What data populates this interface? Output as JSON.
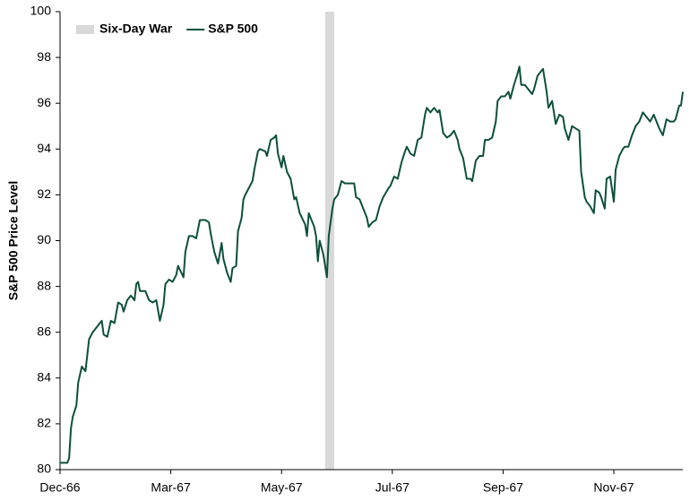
{
  "chart_data": {
    "type": "line",
    "y_label": "S&P 500 Price Level",
    "x": [
      0,
      4,
      5,
      6,
      7,
      9,
      10,
      12,
      14,
      16,
      18,
      21,
      23,
      24,
      26,
      28,
      30,
      32,
      34,
      35,
      37,
      39,
      41,
      42,
      43,
      44,
      47,
      49,
      51,
      53,
      55,
      57,
      58,
      60,
      62,
      64,
      65,
      68,
      69,
      71,
      73,
      75,
      77,
      80,
      82,
      83,
      85,
      87,
      89,
      90,
      92,
      94,
      95,
      97,
      98,
      100,
      101,
      102,
      104,
      106,
      107,
      109,
      110,
      113,
      114,
      116,
      118,
      119,
      120,
      122,
      123,
      125,
      127,
      129,
      130,
      132,
      135,
      136,
      137,
      139,
      140,
      141,
      142,
      143,
      145,
      147,
      148,
      150,
      151,
      153,
      155,
      157,
      159,
      162,
      163,
      165,
      167,
      169,
      170,
      172,
      174,
      176,
      178,
      181,
      182,
      184,
      186,
      188,
      190,
      191,
      193,
      195,
      197,
      199,
      201,
      202,
      204,
      206,
      208,
      209,
      211,
      213,
      215,
      217,
      219,
      220,
      222,
      224,
      226,
      227,
      229,
      231,
      233,
      234,
      236,
      238,
      240,
      241,
      243,
      245,
      247,
      248,
      250,
      252,
      253,
      254,
      256,
      258,
      260,
      261,
      263,
      265,
      266,
      268,
      269,
      271,
      273,
      275,
      277,
      278,
      280,
      282,
      284,
      286,
      287,
      289,
      290,
      292,
      294,
      295,
      297,
      298,
      300,
      301,
      303,
      305,
      306,
      308,
      310,
      311,
      313,
      315,
      317,
      319,
      321,
      323,
      325,
      327,
      330,
      332,
      334,
      336,
      338,
      339,
      341,
      342,
      343
    ],
    "series": [
      {
        "name": "S&P 500",
        "color": "#0d4f3c",
        "values": [
          80.3,
          80.3,
          80.5,
          81.8,
          82.3,
          82.8,
          83.8,
          84.5,
          84.3,
          85.7,
          86.0,
          86.3,
          86.5,
          85.9,
          85.8,
          86.5,
          86.4,
          87.3,
          87.2,
          86.9,
          87.4,
          87.6,
          87.4,
          88.1,
          88.2,
          87.8,
          87.8,
          87.4,
          87.3,
          87.4,
          86.5,
          87.2,
          88.1,
          88.3,
          88.2,
          88.5,
          88.9,
          88.4,
          89.5,
          90.2,
          90.2,
          90.1,
          90.9,
          90.9,
          90.8,
          90.3,
          89.5,
          89.0,
          89.9,
          89.2,
          88.6,
          88.2,
          88.8,
          88.9,
          90.4,
          91.0,
          91.8,
          92.0,
          92.3,
          92.6,
          93.1,
          93.9,
          94.0,
          93.9,
          93.7,
          94.4,
          94.5,
          94.6,
          93.8,
          93.2,
          93.7,
          93.0,
          92.7,
          91.8,
          91.9,
          91.2,
          90.7,
          90.2,
          91.2,
          90.8,
          90.6,
          90.2,
          89.1,
          90.0,
          89.4,
          88.4,
          90.2,
          91.4,
          91.8,
          92.0,
          92.6,
          92.5,
          92.5,
          92.5,
          91.9,
          91.8,
          91.4,
          91.0,
          90.6,
          90.8,
          90.9,
          91.5,
          91.9,
          92.3,
          92.4,
          92.8,
          92.7,
          93.4,
          93.9,
          94.1,
          93.8,
          93.7,
          94.4,
          94.5,
          95.5,
          95.8,
          95.6,
          95.8,
          95.6,
          95.7,
          94.7,
          94.5,
          94.6,
          94.8,
          94.4,
          94.0,
          93.6,
          92.7,
          92.7,
          92.6,
          93.5,
          93.7,
          93.7,
          94.4,
          94.4,
          94.5,
          95.2,
          96.1,
          96.3,
          96.3,
          96.5,
          96.2,
          96.8,
          97.3,
          97.6,
          96.8,
          96.8,
          96.6,
          96.4,
          96.6,
          97.2,
          97.4,
          97.5,
          96.5,
          95.8,
          96.1,
          95.1,
          95.5,
          95.4,
          94.9,
          94.4,
          95.0,
          94.9,
          94.8,
          93.0,
          91.9,
          91.7,
          91.5,
          91.2,
          92.2,
          92.1,
          91.9,
          91.4,
          92.7,
          92.8,
          91.7,
          93.1,
          93.7,
          94.0,
          94.1,
          94.1,
          94.6,
          95.0,
          95.2,
          95.6,
          95.4,
          95.2,
          95.5,
          94.9,
          94.6,
          95.3,
          95.2,
          95.2,
          95.3,
          95.9,
          95.9,
          96.5
        ]
      }
    ],
    "shade": {
      "label": "Six-Day War",
      "start": 146,
      "end": 151,
      "color": "#d9d9d9"
    },
    "xlim": [
      0,
      343
    ],
    "xticks": [
      {
        "value": 0,
        "label": "Dec-66"
      },
      {
        "value": 61,
        "label": "Mar-67"
      },
      {
        "value": 122,
        "label": "May-67"
      },
      {
        "value": 183,
        "label": "Jul-67"
      },
      {
        "value": 244,
        "label": "Sep-67"
      },
      {
        "value": 305,
        "label": "Nov-67"
      }
    ],
    "ylim": [
      80,
      100
    ],
    "yticks": [
      80,
      82,
      84,
      86,
      88,
      90,
      92,
      94,
      96,
      98,
      100
    ],
    "grid": false,
    "legend": "top-left"
  }
}
